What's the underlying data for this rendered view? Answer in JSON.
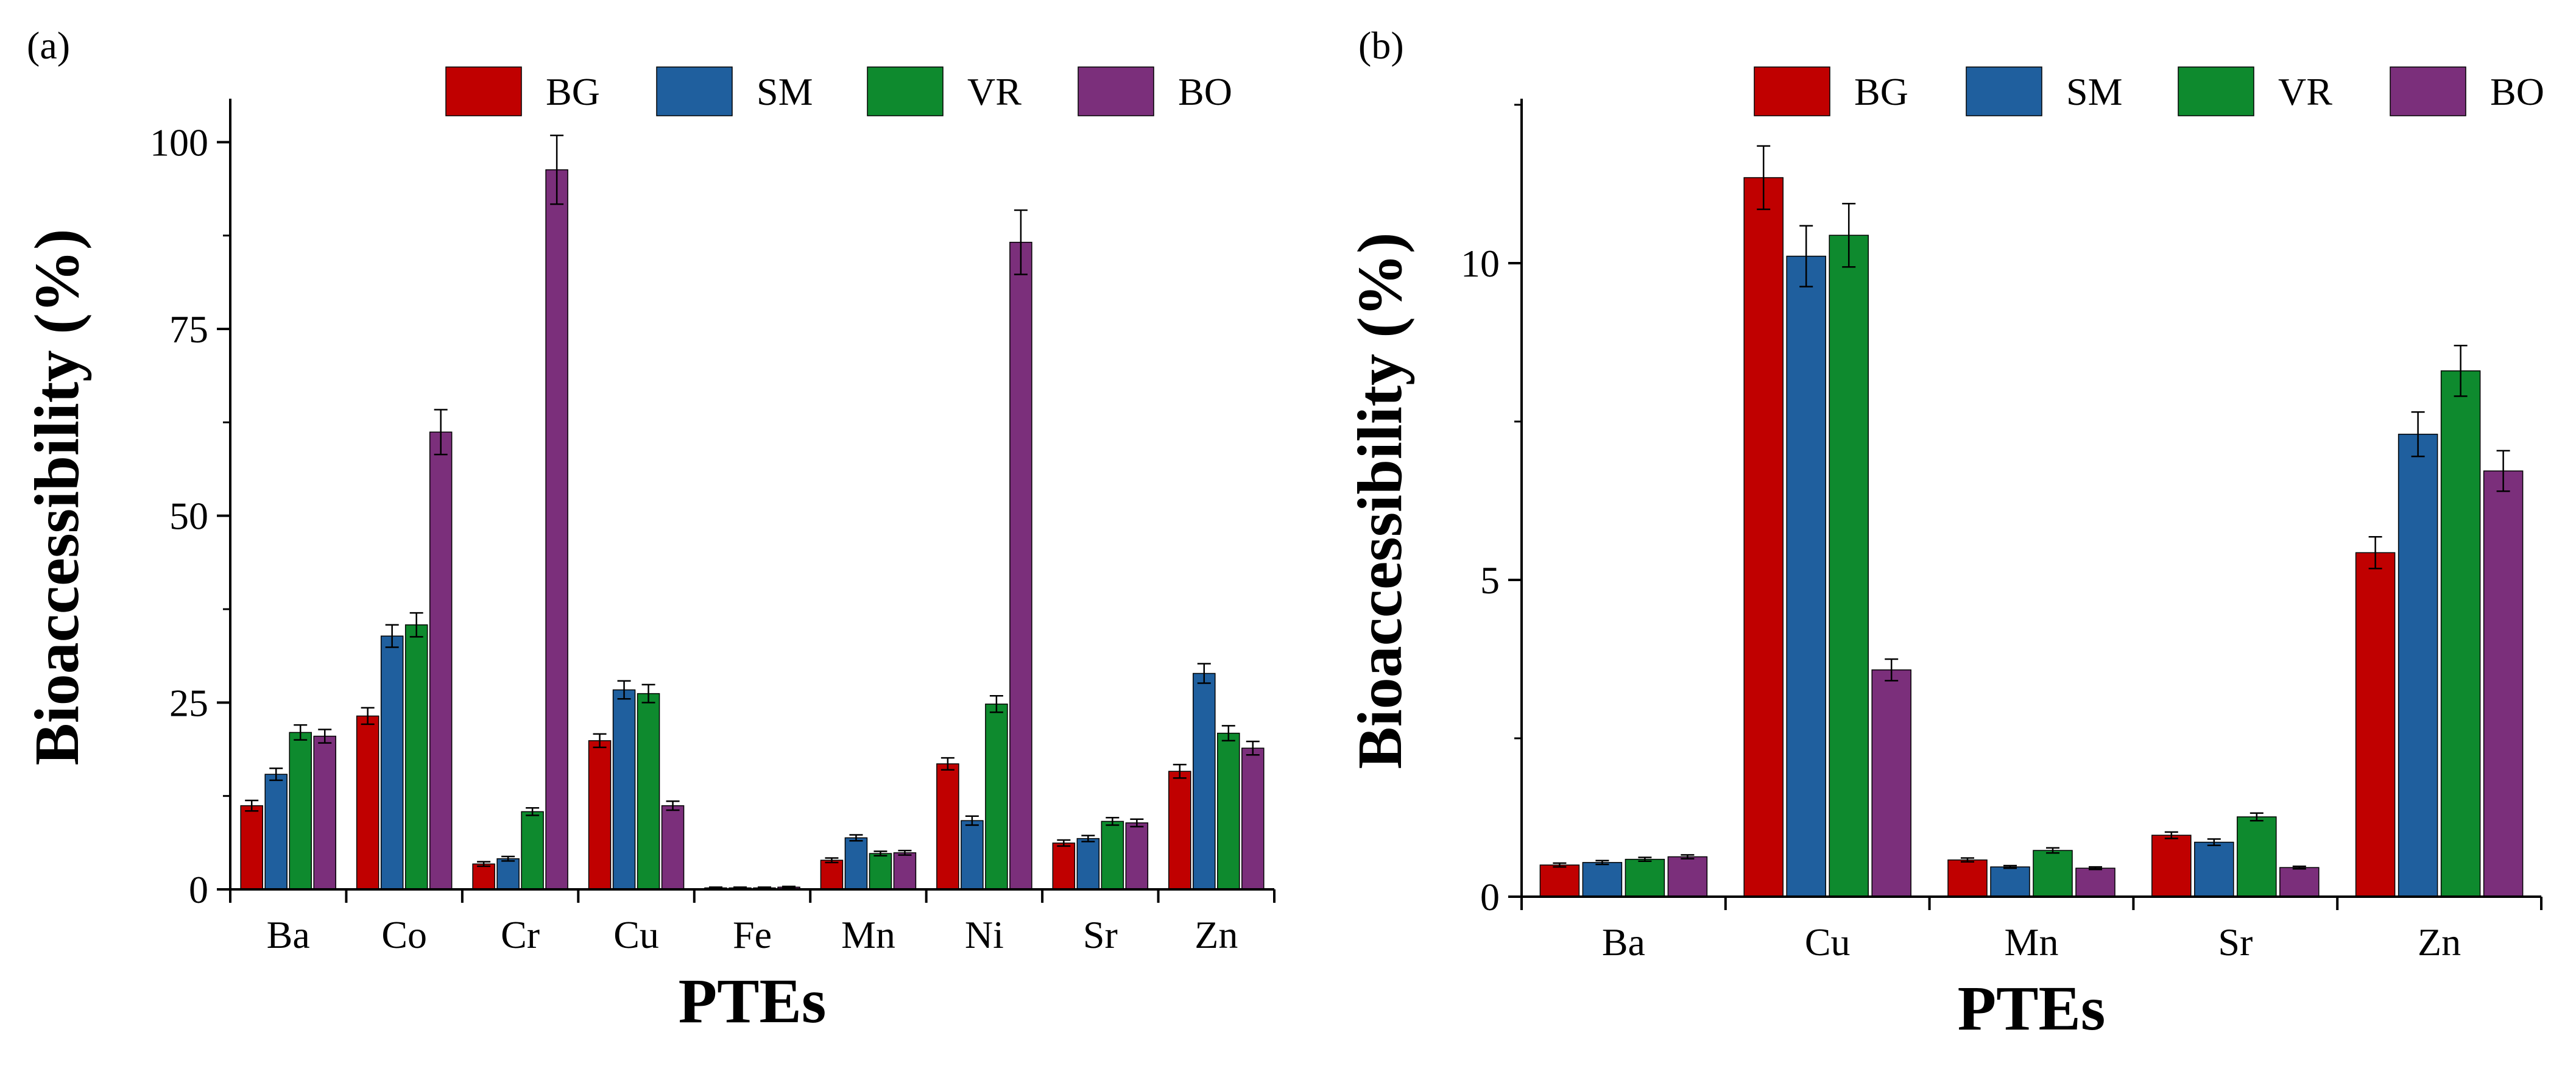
{
  "colors": {
    "BG": "#c00000",
    "SM": "#1f5f9e",
    "VR": "#0e8a2e",
    "BO": "#7b2f7b",
    "axis": "#000000",
    "errorbar": "#000000"
  },
  "chart_data": [
    {
      "panel_label": "(a)",
      "type": "bar",
      "title": "",
      "xlabel": "PTEs",
      "ylabel": "Bioaccessibility (%)",
      "ylim": [
        0,
        105
      ],
      "yticks": [
        0,
        25,
        50,
        75,
        100
      ],
      "ytick_labels": [
        "0",
        "25",
        "50",
        "75",
        "100"
      ],
      "grid": false,
      "legend": "top",
      "categories": [
        "Ba",
        "Co",
        "Cr",
        "Cu",
        "Fe",
        "Mn",
        "Ni",
        "Sr",
        "Zn"
      ],
      "series": [
        {
          "name": "BG",
          "values": [
            11.2,
            23.2,
            3.4,
            19.9,
            0.2,
            3.9,
            16.8,
            6.2,
            15.8
          ],
          "errors": [
            0.7,
            1.1,
            0.3,
            0.9,
            0.1,
            0.3,
            0.8,
            0.4,
            0.9
          ]
        },
        {
          "name": "SM",
          "values": [
            15.4,
            33.9,
            4.1,
            26.7,
            0.2,
            6.9,
            9.2,
            6.8,
            28.9
          ],
          "errors": [
            0.8,
            1.5,
            0.3,
            1.2,
            0.1,
            0.4,
            0.6,
            0.4,
            1.3
          ]
        },
        {
          "name": "VR",
          "values": [
            21.0,
            35.4,
            10.4,
            26.2,
            0.2,
            4.8,
            24.8,
            9.1,
            20.9
          ],
          "errors": [
            1.0,
            1.6,
            0.5,
            1.2,
            0.1,
            0.3,
            1.1,
            0.5,
            1.0
          ]
        },
        {
          "name": "BO",
          "values": [
            20.5,
            61.2,
            96.3,
            11.2,
            0.3,
            4.9,
            86.6,
            8.9,
            18.9
          ],
          "errors": [
            0.9,
            3.0,
            4.6,
            0.6,
            0.1,
            0.3,
            4.3,
            0.5,
            0.9
          ]
        }
      ]
    },
    {
      "panel_label": "(b)",
      "type": "bar",
      "title": "",
      "xlabel": "PTEs",
      "ylabel": "Bioaccessibility (%)",
      "ylim": [
        0,
        12.5
      ],
      "yticks": [
        0,
        5,
        10
      ],
      "ytick_labels": [
        "0",
        "5",
        "10"
      ],
      "grid": false,
      "legend": "top",
      "categories": [
        "Ba",
        "Cu",
        "Mn",
        "Sr",
        "Zn"
      ],
      "series": [
        {
          "name": "BG",
          "values": [
            0.5,
            11.35,
            0.58,
            0.97,
            5.43
          ],
          "errors": [
            0.03,
            0.5,
            0.03,
            0.05,
            0.25
          ]
        },
        {
          "name": "SM",
          "values": [
            0.54,
            10.11,
            0.47,
            0.86,
            7.3
          ],
          "errors": [
            0.03,
            0.48,
            0.02,
            0.05,
            0.35
          ]
        },
        {
          "name": "VR",
          "values": [
            0.59,
            10.44,
            0.73,
            1.26,
            8.3
          ],
          "errors": [
            0.03,
            0.5,
            0.04,
            0.06,
            0.4
          ]
        },
        {
          "name": "BO",
          "values": [
            0.63,
            3.58,
            0.45,
            0.46,
            6.72
          ],
          "errors": [
            0.03,
            0.17,
            0.02,
            0.02,
            0.32
          ]
        }
      ]
    }
  ]
}
